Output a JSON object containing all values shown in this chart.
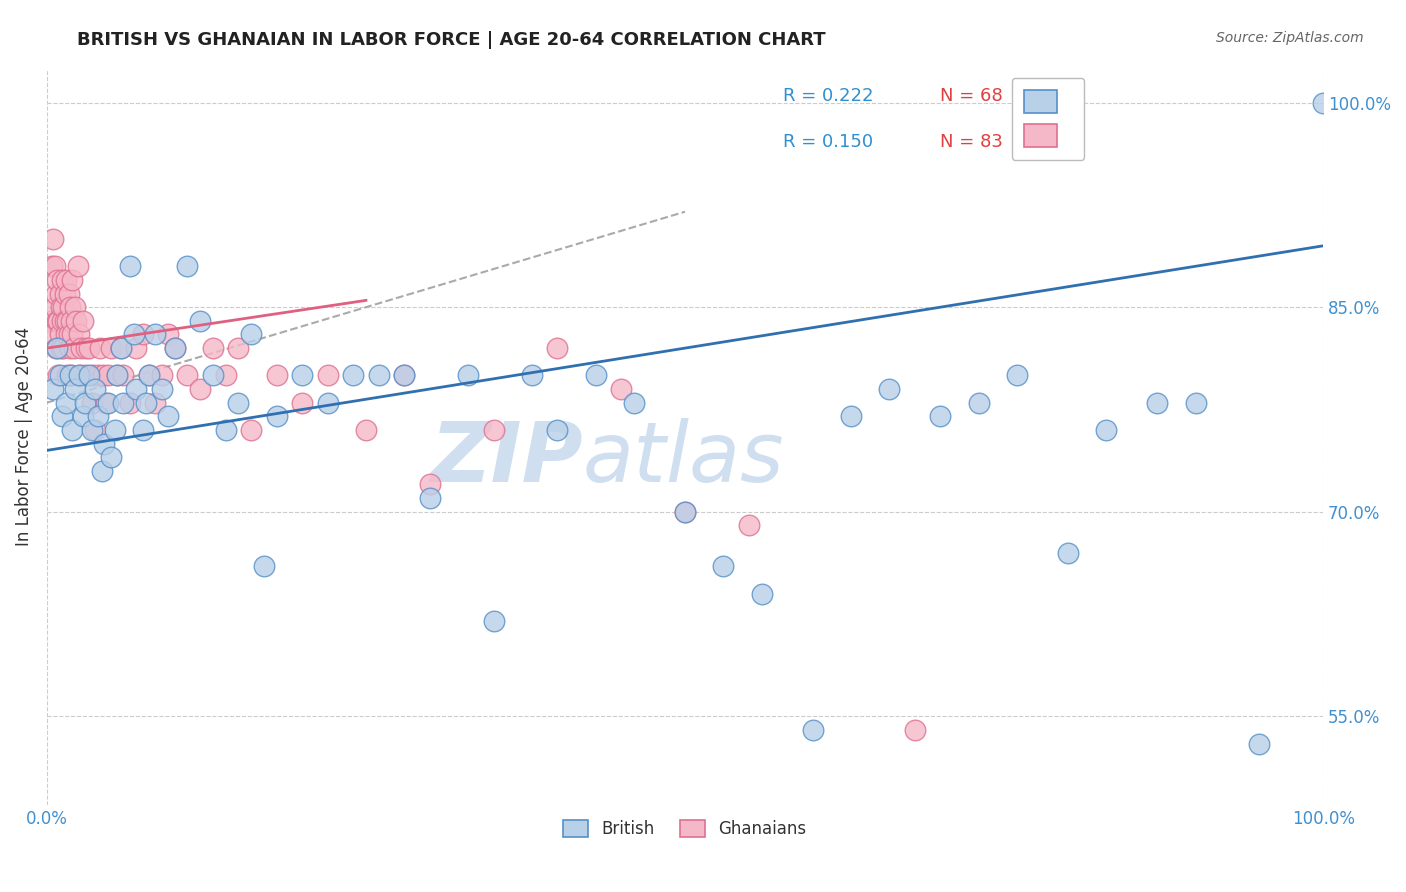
{
  "title": "BRITISH VS GHANAIAN IN LABOR FORCE | AGE 20-64 CORRELATION CHART",
  "source": "Source: ZipAtlas.com",
  "ylabel": "In Labor Force | Age 20-64",
  "xlim": [
    0.0,
    1.0
  ],
  "ylim": [
    0.485,
    1.025
  ],
  "yticks": [
    0.55,
    0.7,
    0.85,
    1.0
  ],
  "ytick_labels": [
    "55.0%",
    "70.0%",
    "85.0%",
    "100.0%"
  ],
  "legend_blue_r": "R = 0.222",
  "legend_blue_n": "N = 68",
  "legend_pink_r": "R = 0.150",
  "legend_pink_n": "N = 83",
  "blue_color": "#b8d0e8",
  "blue_edge_color": "#5590c8",
  "blue_line_color": "#3070b0",
  "pink_color": "#f5b8c8",
  "pink_edge_color": "#e07090",
  "pink_line_color": "#e06080",
  "r_color": "#3090d0",
  "n_color": "#e04040",
  "watermark_color": "#d0dff0",
  "grid_color": "#cccccc",
  "title_color": "#222222",
  "source_color": "#666666",
  "ylabel_color": "#333333",
  "tick_color": "#4090d0",
  "british_x": [
    0.005,
    0.008,
    0.01,
    0.012,
    0.015,
    0.018,
    0.02,
    0.022,
    0.025,
    0.028,
    0.03,
    0.033,
    0.035,
    0.038,
    0.04,
    0.043,
    0.045,
    0.048,
    0.05,
    0.053,
    0.055,
    0.058,
    0.06,
    0.065,
    0.068,
    0.07,
    0.075,
    0.078,
    0.08,
    0.085,
    0.09,
    0.095,
    0.1,
    0.11,
    0.12,
    0.13,
    0.14,
    0.15,
    0.16,
    0.17,
    0.18,
    0.2,
    0.22,
    0.24,
    0.26,
    0.28,
    0.3,
    0.33,
    0.35,
    0.38,
    0.4,
    0.43,
    0.46,
    0.5,
    0.53,
    0.56,
    0.6,
    0.63,
    0.66,
    0.7,
    0.73,
    0.76,
    0.8,
    0.83,
    0.87,
    0.9,
    0.95,
    1.0
  ],
  "british_y": [
    0.79,
    0.82,
    0.8,
    0.77,
    0.78,
    0.8,
    0.76,
    0.79,
    0.8,
    0.77,
    0.78,
    0.8,
    0.76,
    0.79,
    0.77,
    0.73,
    0.75,
    0.78,
    0.74,
    0.76,
    0.8,
    0.82,
    0.78,
    0.88,
    0.83,
    0.79,
    0.76,
    0.78,
    0.8,
    0.83,
    0.79,
    0.77,
    0.82,
    0.88,
    0.84,
    0.8,
    0.76,
    0.78,
    0.83,
    0.66,
    0.77,
    0.8,
    0.78,
    0.8,
    0.8,
    0.8,
    0.71,
    0.8,
    0.62,
    0.8,
    0.76,
    0.8,
    0.78,
    0.7,
    0.66,
    0.64,
    0.54,
    0.77,
    0.79,
    0.77,
    0.78,
    0.8,
    0.67,
    0.76,
    0.78,
    0.78,
    0.53,
    1.0
  ],
  "ghanaian_x": [
    0.003,
    0.004,
    0.005,
    0.005,
    0.006,
    0.006,
    0.007,
    0.007,
    0.008,
    0.008,
    0.009,
    0.009,
    0.01,
    0.01,
    0.011,
    0.011,
    0.012,
    0.012,
    0.013,
    0.013,
    0.014,
    0.014,
    0.015,
    0.015,
    0.016,
    0.016,
    0.017,
    0.017,
    0.018,
    0.018,
    0.019,
    0.019,
    0.02,
    0.02,
    0.021,
    0.022,
    0.023,
    0.024,
    0.025,
    0.026,
    0.027,
    0.028,
    0.03,
    0.031,
    0.033,
    0.035,
    0.036,
    0.038,
    0.04,
    0.042,
    0.044,
    0.046,
    0.048,
    0.05,
    0.055,
    0.058,
    0.06,
    0.065,
    0.07,
    0.075,
    0.08,
    0.085,
    0.09,
    0.095,
    0.1,
    0.11,
    0.12,
    0.13,
    0.14,
    0.15,
    0.16,
    0.18,
    0.2,
    0.22,
    0.25,
    0.28,
    0.3,
    0.35,
    0.4,
    0.45,
    0.5,
    0.55,
    0.68
  ],
  "ghanaian_y": [
    0.84,
    0.88,
    0.83,
    0.9,
    0.85,
    0.88,
    0.82,
    0.86,
    0.84,
    0.87,
    0.8,
    0.84,
    0.83,
    0.86,
    0.82,
    0.85,
    0.84,
    0.87,
    0.82,
    0.85,
    0.84,
    0.86,
    0.83,
    0.87,
    0.8,
    0.84,
    0.83,
    0.86,
    0.82,
    0.85,
    0.8,
    0.84,
    0.83,
    0.87,
    0.82,
    0.85,
    0.84,
    0.88,
    0.83,
    0.8,
    0.82,
    0.84,
    0.8,
    0.82,
    0.82,
    0.78,
    0.8,
    0.76,
    0.8,
    0.82,
    0.8,
    0.78,
    0.8,
    0.82,
    0.8,
    0.82,
    0.8,
    0.78,
    0.82,
    0.83,
    0.8,
    0.78,
    0.8,
    0.83,
    0.82,
    0.8,
    0.79,
    0.82,
    0.8,
    0.82,
    0.76,
    0.8,
    0.78,
    0.8,
    0.76,
    0.8,
    0.72,
    0.76,
    0.82,
    0.79,
    0.7,
    0.69,
    0.54
  ],
  "blue_regline_x0": 0.0,
  "blue_regline_y0": 0.745,
  "blue_regline_x1": 1.0,
  "blue_regline_y1": 0.895,
  "pink_regline_x0": 0.0,
  "pink_regline_y0": 0.82,
  "pink_regline_x1": 0.25,
  "pink_regline_y1": 0.855,
  "dash_line_x0": 0.0,
  "dash_line_y0": 0.78,
  "dash_line_x1": 0.5,
  "dash_line_y1": 0.92
}
